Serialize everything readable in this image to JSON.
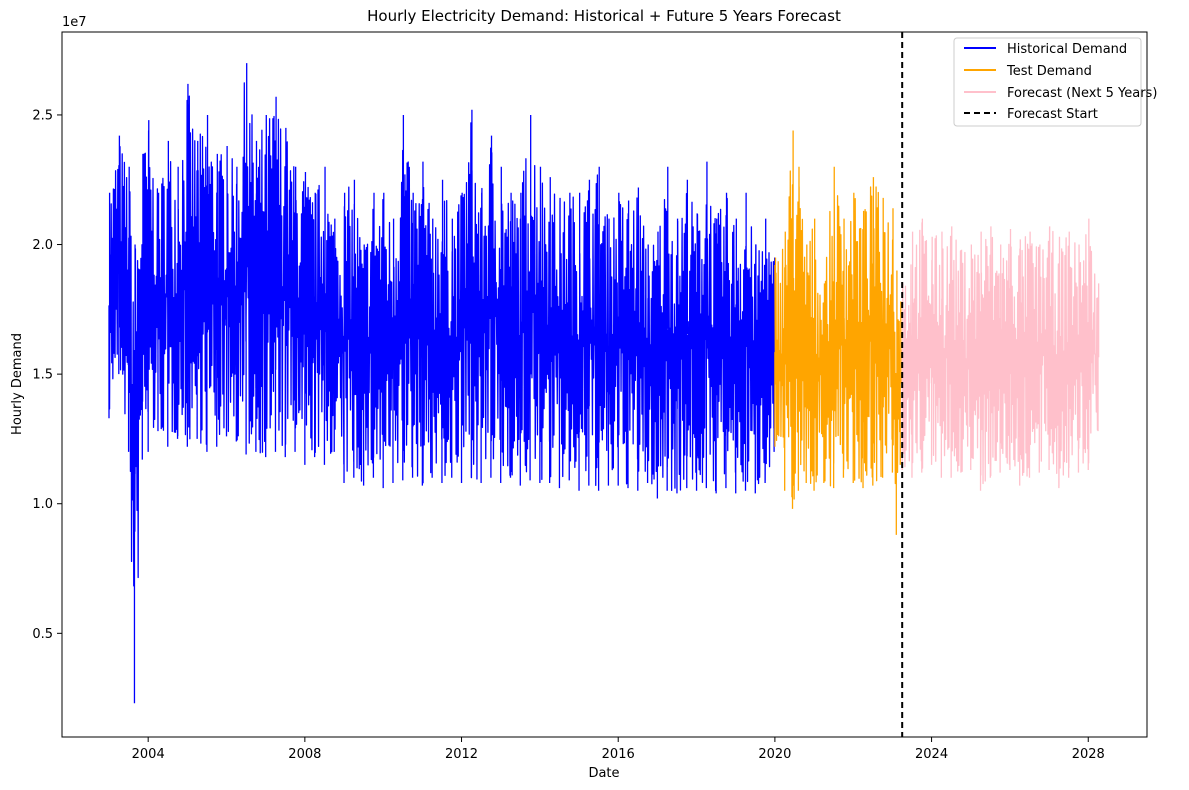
{
  "chart_data": {
    "type": "line",
    "title": "Hourly Electricity Demand: Historical + Future 5 Years Forecast",
    "xlabel": "Date",
    "ylabel": "Hourly Demand",
    "y_offset_label": "1e7",
    "xlim": [
      2001.8,
      2029.5
    ],
    "ylim": [
      0.1,
      2.82
    ],
    "x_ticks": [
      {
        "value": 2004,
        "label": "2004"
      },
      {
        "value": 2008,
        "label": "2008"
      },
      {
        "value": 2012,
        "label": "2012"
      },
      {
        "value": 2016,
        "label": "2016"
      },
      {
        "value": 2020,
        "label": "2020"
      },
      {
        "value": 2024,
        "label": "2024"
      },
      {
        "value": 2028,
        "label": "2028"
      }
    ],
    "y_ticks": [
      {
        "value": 0.5,
        "label": "0.5"
      },
      {
        "value": 1.0,
        "label": "1.0"
      },
      {
        "value": 1.5,
        "label": "1.5"
      },
      {
        "value": 2.0,
        "label": "2.0"
      },
      {
        "value": 2.5,
        "label": "2.5"
      }
    ],
    "grid": false,
    "legend_position": "top-right",
    "series": [
      {
        "name": "Historical Demand",
        "color": "#0000ff",
        "style": "solid",
        "points": [
          [
            2003.0,
            1.33,
            2.2
          ],
          [
            2003.25,
            1.5,
            2.42
          ],
          [
            2003.5,
            1.2,
            2.3
          ],
          [
            2003.65,
            0.23,
            2.0
          ],
          [
            2003.85,
            1.17,
            2.35
          ],
          [
            2004.0,
            1.2,
            2.48
          ],
          [
            2004.25,
            1.28,
            2.2
          ],
          [
            2004.5,
            1.22,
            2.4
          ],
          [
            2004.75,
            1.25,
            2.3
          ],
          [
            2005.0,
            1.22,
            2.62
          ],
          [
            2005.25,
            1.25,
            2.4
          ],
          [
            2005.5,
            1.2,
            2.5
          ],
          [
            2005.75,
            1.22,
            2.35
          ],
          [
            2006.0,
            1.26,
            2.38
          ],
          [
            2006.25,
            1.24,
            2.3
          ],
          [
            2006.5,
            1.19,
            2.7
          ],
          [
            2006.75,
            1.2,
            2.4
          ],
          [
            2007.0,
            1.18,
            2.5
          ],
          [
            2007.25,
            1.2,
            2.57
          ],
          [
            2007.5,
            1.18,
            2.45
          ],
          [
            2007.75,
            1.2,
            2.3
          ],
          [
            2008.0,
            1.15,
            2.28
          ],
          [
            2008.25,
            1.18,
            2.2
          ],
          [
            2008.5,
            1.15,
            2.3
          ],
          [
            2008.75,
            1.2,
            2.1
          ],
          [
            2009.0,
            1.08,
            2.2
          ],
          [
            2009.25,
            1.1,
            2.25
          ],
          [
            2009.5,
            1.07,
            2.0
          ],
          [
            2009.75,
            1.1,
            2.2
          ],
          [
            2010.0,
            1.06,
            2.2
          ],
          [
            2010.25,
            1.08,
            2.1
          ],
          [
            2010.5,
            1.09,
            2.5
          ],
          [
            2010.75,
            1.1,
            2.2
          ],
          [
            2011.0,
            1.07,
            2.32
          ],
          [
            2011.25,
            1.1,
            2.1
          ],
          [
            2011.5,
            1.08,
            2.25
          ],
          [
            2011.75,
            1.1,
            2.1
          ],
          [
            2012.0,
            1.08,
            2.2
          ],
          [
            2012.25,
            1.1,
            2.52
          ],
          [
            2012.5,
            1.08,
            2.2
          ],
          [
            2012.75,
            1.1,
            2.42
          ],
          [
            2013.0,
            1.08,
            2.3
          ],
          [
            2013.25,
            1.1,
            2.2
          ],
          [
            2013.5,
            1.07,
            2.2
          ],
          [
            2013.75,
            1.09,
            2.5
          ],
          [
            2014.0,
            1.08,
            2.3
          ],
          [
            2014.25,
            1.08,
            2.26
          ],
          [
            2014.5,
            1.06,
            2.18
          ],
          [
            2014.75,
            1.09,
            2.2
          ],
          [
            2015.0,
            1.05,
            2.2
          ],
          [
            2015.25,
            1.07,
            2.25
          ],
          [
            2015.5,
            1.05,
            2.3
          ],
          [
            2015.75,
            1.07,
            2.1
          ],
          [
            2016.0,
            1.07,
            2.2
          ],
          [
            2016.25,
            1.06,
            2.17
          ],
          [
            2016.5,
            1.05,
            2.22
          ],
          [
            2016.75,
            1.08,
            2.0
          ],
          [
            2017.0,
            1.02,
            2.05
          ],
          [
            2017.25,
            1.05,
            2.3
          ],
          [
            2017.5,
            1.04,
            2.1
          ],
          [
            2017.75,
            1.06,
            2.25
          ],
          [
            2018.0,
            1.05,
            2.12
          ],
          [
            2018.25,
            1.06,
            2.32
          ],
          [
            2018.5,
            1.04,
            2.1
          ],
          [
            2018.75,
            1.06,
            2.2
          ],
          [
            2019.0,
            1.04,
            2.1
          ],
          [
            2019.25,
            1.05,
            2.2
          ],
          [
            2019.5,
            1.04,
            2.0
          ],
          [
            2019.75,
            1.08,
            2.1
          ],
          [
            2019.98,
            1.2,
            1.95
          ]
        ]
      },
      {
        "name": "Test Demand",
        "color": "#ffa500",
        "style": "solid",
        "points": [
          [
            2020.0,
            1.22,
            1.95
          ],
          [
            2020.25,
            1.05,
            2.05
          ],
          [
            2020.45,
            0.98,
            2.44
          ],
          [
            2020.6,
            1.05,
            2.3
          ],
          [
            2020.8,
            1.08,
            2.0
          ],
          [
            2021.0,
            1.05,
            2.1
          ],
          [
            2021.25,
            1.08,
            1.85
          ],
          [
            2021.5,
            1.06,
            2.3
          ],
          [
            2021.75,
            1.1,
            2.1
          ],
          [
            2022.0,
            1.08,
            2.2
          ],
          [
            2022.25,
            1.06,
            2.13
          ],
          [
            2022.5,
            1.07,
            2.26
          ],
          [
            2022.75,
            1.1,
            2.18
          ],
          [
            2023.0,
            1.12,
            2.14
          ],
          [
            2023.1,
            0.88,
            1.9
          ],
          [
            2023.2,
            1.15,
            1.78
          ]
        ]
      },
      {
        "name": "Forecast (Next 5 Years)",
        "color": "#ffc0cb",
        "style": "solid",
        "points": [
          [
            2023.25,
            1.13,
            1.85
          ],
          [
            2023.5,
            1.1,
            2.05
          ],
          [
            2023.75,
            1.12,
            2.1
          ],
          [
            2024.0,
            1.15,
            2.03
          ],
          [
            2024.25,
            1.1,
            2.05
          ],
          [
            2024.5,
            1.1,
            2.07
          ],
          [
            2024.75,
            1.12,
            1.98
          ],
          [
            2025.0,
            1.13,
            2.0
          ],
          [
            2025.25,
            1.05,
            2.05
          ],
          [
            2025.5,
            1.1,
            2.07
          ],
          [
            2025.75,
            1.12,
            2.0
          ],
          [
            2026.0,
            1.13,
            2.06
          ],
          [
            2026.25,
            1.07,
            2.02
          ],
          [
            2026.5,
            1.1,
            2.05
          ],
          [
            2026.75,
            1.12,
            2.0
          ],
          [
            2027.0,
            1.13,
            2.07
          ],
          [
            2027.25,
            1.06,
            2.03
          ],
          [
            2027.5,
            1.1,
            2.05
          ],
          [
            2027.75,
            1.12,
            2.0
          ],
          [
            2028.0,
            1.13,
            2.1
          ],
          [
            2028.25,
            1.28,
            1.85
          ]
        ]
      },
      {
        "name": "Forecast Start",
        "color": "#000000",
        "style": "dashed",
        "x": 2023.25
      }
    ]
  }
}
